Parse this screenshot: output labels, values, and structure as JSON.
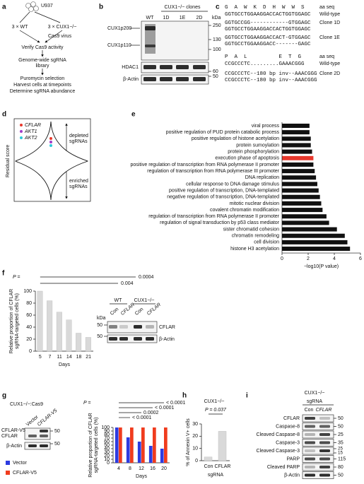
{
  "panel_a": {
    "label": "a",
    "cell_line": "U937",
    "groups": [
      "3 × WT",
      "3 × CUX1−/−"
    ],
    "virus": "Cas9 virus",
    "steps": [
      "Verify Cas9 activity",
      "Genome-wide sgRNA",
      "library",
      "Puromycin selection",
      "Harvest cells at timepoints",
      "Determine sgRNA abundance"
    ]
  },
  "panel_b": {
    "label": "b",
    "clones": "CUX1−/− clones",
    "lanes": [
      "WT",
      "1D",
      "1E",
      "2D"
    ],
    "unit": "kDa",
    "proteins": [
      "CUX1p200",
      "CUX1p110",
      "HDAC1",
      "β-Actin"
    ],
    "markers": [
      "250",
      "130",
      "100",
      "60",
      "50"
    ]
  },
  "panel_c": {
    "label": "c",
    "rows": [
      {
        "seq": "G  A  W  K  D  H  W  W  S",
        "name": "aa seq"
      },
      {
        "seq": "GGTGCCTGGAAGGACCACTGGTGGAGC",
        "name": "Wild-type"
      },
      {
        "seq": "GGTGCCGG------------GTGGAGC",
        "name": "Clone 1D"
      },
      {
        "seq": "GGTGCCTGGAAGGACCACTGGTGGAGC"
      },
      {
        "seq": "GGTGCCTGGAAGGACCACT-GTGGAGC",
        "name": "Clone 1E"
      },
      {
        "seq": "GGTGCCTGGAAGGACC-------GAGC"
      },
      {
        "seq": "P  A  L          E  T  G",
        "name": "aa seq"
      },
      {
        "seq": "CCGCCCTC.........GAAACGGG",
        "name": "Wild-type"
      },
      {
        "seq": "CCGCCCTC--180 bp inv--AAACGGG",
        "name": "Clone 2D"
      },
      {
        "seq": "CCGCCCTC--180 bp inv--AAACGGG"
      }
    ]
  },
  "panel_d": {
    "label": "d",
    "axis": "Residual score",
    "genes": [
      {
        "name": "CFLAR",
        "color": "#e8382c"
      },
      {
        "name": "AKT1",
        "color": "#a03cc9"
      },
      {
        "name": "AKT2",
        "color": "#2ec8d8"
      }
    ],
    "depleted": [
      "depleted",
      "sgRNAs"
    ],
    "enriched": [
      "enriched",
      "sgRNAs"
    ]
  },
  "panel_e": {
    "label": "e",
    "chart_data": {
      "type": "hbar",
      "categories": [
        "viral process",
        "positive regulation of PUD protein catabolic process",
        "positive regulation of histone acetylation",
        "protein sumoylation",
        "protein phosphorylation",
        "execution phase of apoptosis",
        "positive regulation of transcription from RNA polymerase II promoter",
        "regulation of transcription from RNA polymerase III promoter",
        "DNA replication",
        "cellular response to DNA damage stimulus",
        "positive regulation of transcription, DNA-templated",
        "negative regulation of transcription, DNA-templated",
        "mitotic nuclear division",
        "covalent chromatin modification",
        "regulation of transcription from RNA polymerase II promoter",
        "regulation of signal transduction by p53 class mediator",
        "sister chromatid cohesion",
        "chromatin remodeling",
        "cell division",
        "histone H3 acetylation"
      ],
      "values": [
        2.1,
        2.1,
        2.2,
        2.2,
        2.3,
        2.4,
        2.4,
        2.5,
        2.6,
        2.7,
        2.8,
        2.9,
        3.0,
        3.1,
        3.4,
        3.6,
        4.2,
        4.8,
        5.0,
        5.2
      ],
      "colors": [
        "#111111",
        "#111111",
        "#111111",
        "#111111",
        "#111111",
        "#e8382c",
        "#111111",
        "#111111",
        "#111111",
        "#111111",
        "#111111",
        "#111111",
        "#111111",
        "#111111",
        "#111111",
        "#111111",
        "#111111",
        "#111111",
        "#111111",
        "#111111"
      ],
      "xlim": [
        0,
        6
      ],
      "xticks": [
        0,
        2,
        4,
        6
      ],
      "x_label": "−log10(P value)"
    }
  },
  "panel_f": {
    "label": "f",
    "chart_data": {
      "type": "bar",
      "categories": [
        "5",
        "7",
        "11",
        "14",
        "18",
        "21"
      ],
      "values": [
        100,
        84,
        65,
        52,
        30,
        23
      ],
      "color": "#d9d9d9",
      "ylim": [
        0,
        100
      ],
      "yticks": [
        0,
        20,
        40,
        60,
        80,
        100
      ],
      "y_label": [
        "Relative proportion of CFLAR",
        "sgRNA-targeted cells (%)"
      ],
      "x_label": "Days",
      "p_prefix": "P =",
      "p_values": [
        "0.0004",
        "0.004"
      ]
    },
    "blot": {
      "groups": [
        "WT",
        "CUX1−/−"
      ],
      "lanes": [
        "Con",
        "CFLAR",
        "Con",
        "CFLAR"
      ],
      "unit": "kDa",
      "proteins": [
        "CFLAR",
        "β-Actin"
      ],
      "markers": [
        "50",
        "50"
      ]
    }
  },
  "panel_g": {
    "label": "g",
    "title": "CUX1−/−:Cas9",
    "blot": {
      "lanes": [
        "Vector",
        "CFLAR-V5"
      ],
      "proteins": [
        "CFLAR-V5",
        "CFLAR",
        "β-Actin"
      ],
      "markers": [
        "50",
        "50"
      ]
    },
    "chart_data": {
      "type": "bar",
      "categories": [
        "4",
        "8",
        "12",
        "16",
        "20"
      ],
      "series": [
        {
          "name": "Vector",
          "color": "#2d3be0",
          "values": [
            100,
            72,
            60,
            48,
            40
          ]
        },
        {
          "name": "CFLAR-V5",
          "color": "#f03c1e",
          "values": [
            100,
            100,
            100,
            100,
            100
          ]
        }
      ],
      "ylim": [
        0,
        100
      ],
      "yticks": [
        0,
        10,
        20,
        30,
        40,
        50,
        60,
        70,
        80,
        90,
        100
      ],
      "y_label": [
        "Relative proportion of CFLAR",
        "sgRNA-targeted cells (%)"
      ],
      "x_label": "Days",
      "p_prefix": "P =",
      "p_values": [
        "< 0.0001",
        "< 0.0001",
        "0.0002",
        "< 0.0001"
      ]
    }
  },
  "panel_h": {
    "label": "h",
    "title": "CUX1−/−",
    "p": "P = 0.037",
    "chart_data": {
      "type": "bar",
      "categories": [
        "Con",
        "CFLAR"
      ],
      "values": [
        3,
        24
      ],
      "color": "#d9d9d9",
      "ylim": [
        0,
        30
      ],
      "yticks": [
        0,
        10,
        20,
        30
      ],
      "y_label": "% of Annexin V+ cells",
      "x_label": "sgRNA"
    }
  },
  "panel_i": {
    "label": "i",
    "title": "CUX1−/−",
    "sgrna": "sgRNA",
    "lanes": [
      "Con",
      "CFLAR"
    ],
    "rows": [
      {
        "protein": "CFLAR",
        "markers": [
          "50"
        ]
      },
      {
        "protein": "Caspase-8",
        "markers": [
          "50"
        ]
      },
      {
        "protein": "Cleaved Caspase-8",
        "markers": [
          "25"
        ]
      },
      {
        "protein": "Caspase-3",
        "markers": [
          "35"
        ]
      },
      {
        "protein": "Cleaved Caspase-3",
        "markers": [
          "25",
          "15"
        ]
      },
      {
        "protein": "PARP",
        "markers": [
          "115"
        ]
      },
      {
        "protein": "Cleaved PARP",
        "markers": [
          "80"
        ]
      },
      {
        "protein": "β-Actin",
        "markers": [
          "50"
        ]
      }
    ]
  }
}
